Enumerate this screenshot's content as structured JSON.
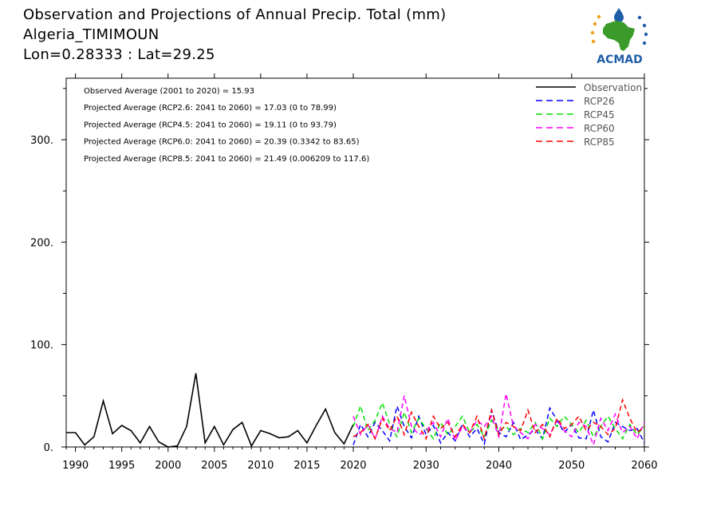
{
  "header": {
    "title": "Observation and Projections of Annual Precip. Total (mm)",
    "location": "Algeria_TIMIMOUN",
    "coords": "Lon=0.28333 : Lat=29.25"
  },
  "logo": {
    "text": "ACMAD"
  },
  "colors": {
    "observation": "#000000",
    "rcp26": "#0000ff",
    "rcp45": "#00e000",
    "rcp60": "#ff00ff",
    "rcp85": "#ff0000",
    "logo_blue": "#1f5fa8",
    "logo_green": "#3a9a2a",
    "logo_orange": "#f0a020"
  },
  "chart_data": {
    "type": "line",
    "title": "Observation and Projections of Annual Precip. Total (mm)",
    "xlabel": "",
    "ylabel": "",
    "xlim": [
      1989,
      2060
    ],
    "ylim": [
      0,
      360
    ],
    "x_ticks": [
      1990,
      1995,
      2000,
      2005,
      2010,
      2015,
      2020,
      2030,
      2040,
      2050,
      2060
    ],
    "y_ticks": [
      0,
      100,
      200,
      300
    ],
    "y_tick_labels": [
      "0.",
      "100.",
      "200.",
      "300."
    ],
    "grid": false,
    "legend_position": "top-right",
    "annotations": [
      "Observed Average (2001 to 2020) = 15.93",
      "Projected Average (RCP2.6: 2041 to 2060) = 17.03 (0 to 78.99)",
      "Projected Average (RCP4.5: 2041 to 2060) = 19.11 (0 to 93.79)",
      "Projected Average (RCP6.0: 2041 to 2060) = 20.39 (0.3342 to 83.65)",
      "Projected Average (RCP8.5: 2041 to 2060) = 21.49 (0.006209 to 117.6)"
    ],
    "series": [
      {
        "name": "Observation",
        "style": "solid",
        "x": [
          1989,
          1990,
          1991,
          1992,
          1993,
          1994,
          1995,
          1996,
          1997,
          1998,
          1999,
          2000,
          2001,
          2002,
          2003,
          2004,
          2005,
          2006,
          2007,
          2008,
          2009,
          2010,
          2011,
          2012,
          2013,
          2014,
          2015,
          2016,
          2017,
          2018,
          2019,
          2020
        ],
        "values": [
          14,
          14,
          2,
          10,
          45,
          13,
          21,
          16,
          4,
          20,
          5,
          0,
          1,
          20,
          72,
          4,
          20,
          2,
          17,
          24,
          1,
          16,
          13,
          9,
          10,
          16,
          4,
          21,
          37,
          14,
          3,
          22
        ]
      },
      {
        "name": "RCP26",
        "style": "dashed",
        "x": [
          2020,
          2021,
          2022,
          2023,
          2024,
          2025,
          2026,
          2027,
          2028,
          2029,
          2030,
          2031,
          2032,
          2033,
          2034,
          2035,
          2036,
          2037,
          2038,
          2039,
          2040,
          2041,
          2042,
          2043,
          2044,
          2045,
          2046,
          2047,
          2048,
          2049,
          2050,
          2051,
          2052,
          2053,
          2054,
          2055,
          2056,
          2057,
          2058,
          2059,
          2060
        ],
        "values": [
          2,
          22,
          10,
          24,
          16,
          6,
          40,
          20,
          9,
          30,
          12,
          21,
          4,
          14,
          6,
          22,
          10,
          18,
          3,
          36,
          14,
          10,
          24,
          7,
          12,
          17,
          8,
          38,
          26,
          14,
          22,
          9,
          8,
          36,
          10,
          5,
          24,
          20,
          16,
          18,
          4
        ]
      },
      {
        "name": "RCP45",
        "style": "dashed",
        "x": [
          2020,
          2021,
          2022,
          2023,
          2024,
          2025,
          2026,
          2027,
          2028,
          2029,
          2030,
          2031,
          2032,
          2033,
          2034,
          2035,
          2036,
          2037,
          2038,
          2039,
          2040,
          2041,
          2042,
          2043,
          2044,
          2045,
          2046,
          2047,
          2048,
          2049,
          2050,
          2051,
          2052,
          2053,
          2054,
          2055,
          2056,
          2057,
          2058,
          2059,
          2060
        ],
        "values": [
          20,
          40,
          16,
          26,
          43,
          22,
          10,
          34,
          14,
          28,
          18,
          8,
          24,
          12,
          20,
          30,
          14,
          22,
          10,
          26,
          16,
          20,
          12,
          18,
          14,
          24,
          8,
          28,
          20,
          30,
          22,
          14,
          26,
          10,
          20,
          30,
          18,
          8,
          22,
          12,
          20
        ]
      },
      {
        "name": "RCP60",
        "style": "dashed",
        "x": [
          2020,
          2021,
          2022,
          2023,
          2024,
          2025,
          2026,
          2027,
          2028,
          2029,
          2030,
          2031,
          2032,
          2033,
          2034,
          2035,
          2036,
          2037,
          2038,
          2039,
          2040,
          2041,
          2042,
          2043,
          2044,
          2045,
          2046,
          2047,
          2048,
          2049,
          2050,
          2051,
          2052,
          2053,
          2054,
          2055,
          2056,
          2057,
          2058,
          2059,
          2060
        ],
        "values": [
          30,
          12,
          22,
          8,
          30,
          18,
          14,
          50,
          20,
          12,
          16,
          24,
          10,
          28,
          6,
          20,
          14,
          26,
          20,
          30,
          10,
          52,
          20,
          14,
          8,
          22,
          18,
          12,
          26,
          16,
          10,
          24,
          20,
          2,
          28,
          16,
          32,
          14,
          20,
          8,
          24
        ]
      },
      {
        "name": "RCP85",
        "style": "dashed",
        "x": [
          2020,
          2021,
          2022,
          2023,
          2024,
          2025,
          2026,
          2027,
          2028,
          2029,
          2030,
          2031,
          2032,
          2033,
          2034,
          2035,
          2036,
          2037,
          2038,
          2039,
          2040,
          2041,
          2042,
          2043,
          2044,
          2045,
          2046,
          2047,
          2048,
          2049,
          2050,
          2051,
          2052,
          2053,
          2054,
          2055,
          2056,
          2057,
          2058,
          2059,
          2060
        ],
        "values": [
          10,
          14,
          22,
          8,
          28,
          16,
          30,
          12,
          34,
          20,
          8,
          30,
          18,
          24,
          10,
          22,
          14,
          30,
          8,
          36,
          12,
          24,
          20,
          16,
          36,
          14,
          22,
          10,
          28,
          18,
          22,
          30,
          16,
          24,
          20,
          12,
          18,
          46,
          28,
          14,
          20
        ]
      }
    ]
  }
}
